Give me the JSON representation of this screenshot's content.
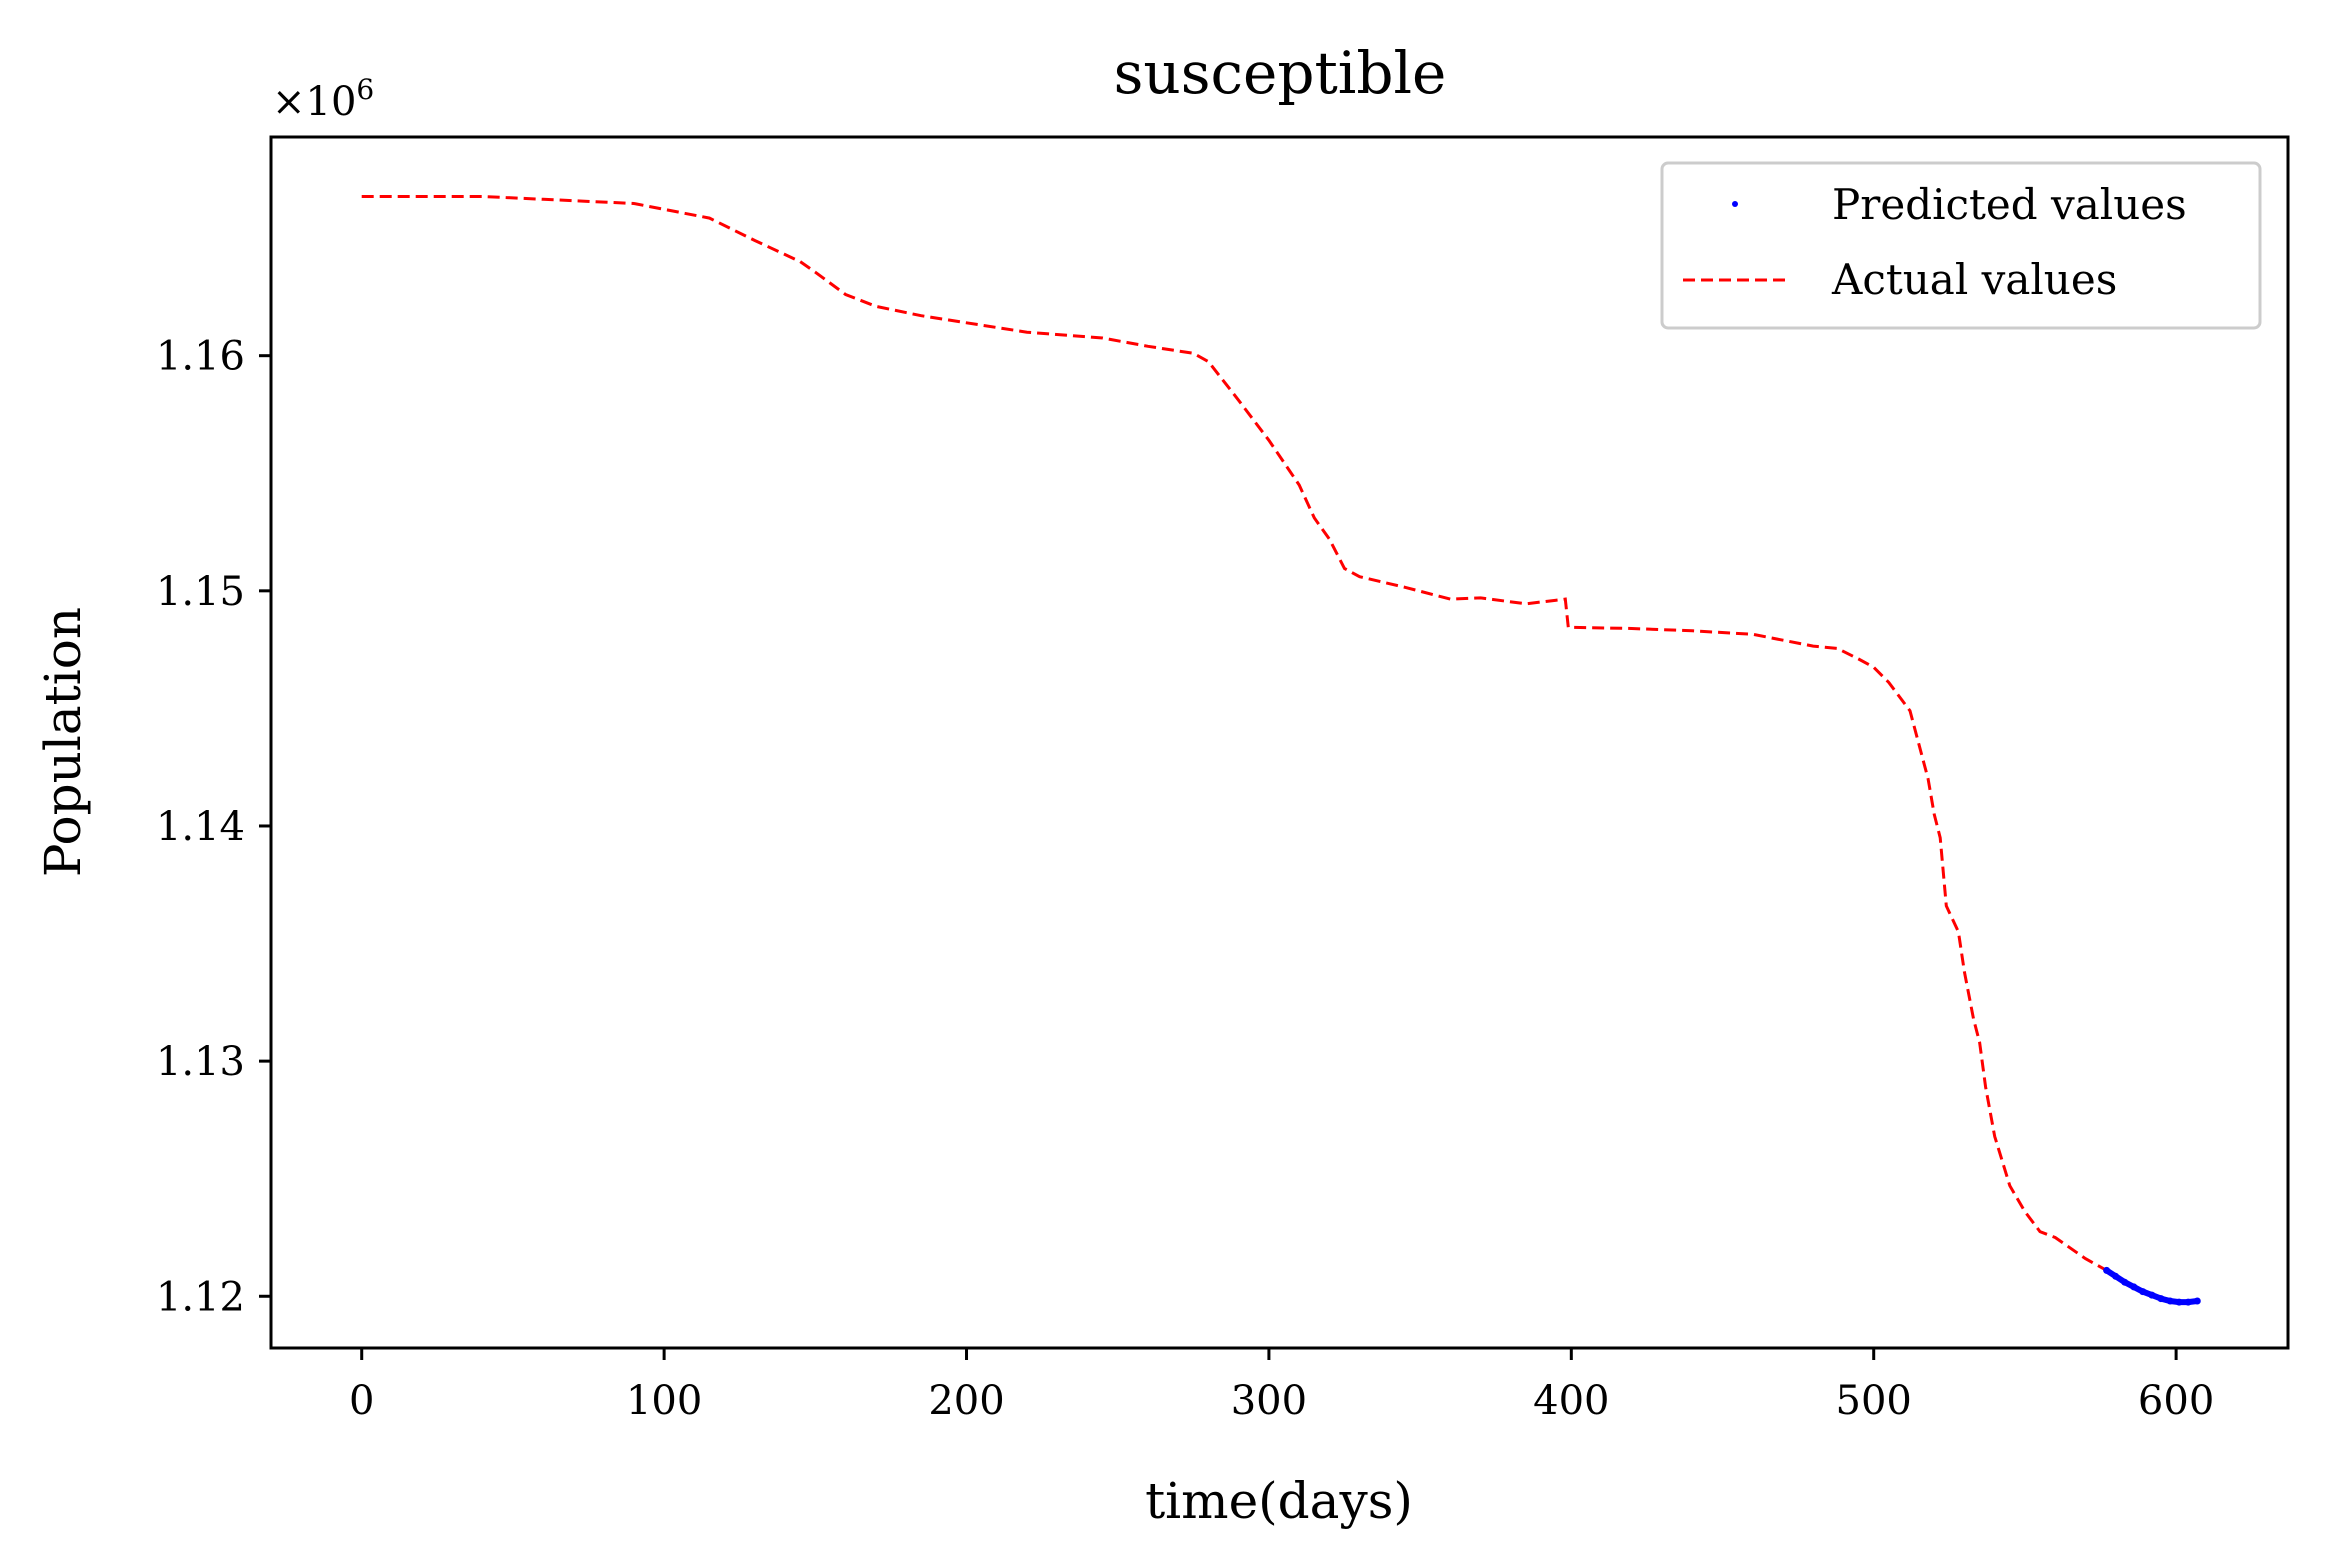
{
  "chart_data": {
    "type": "line",
    "title": "susceptible",
    "xlabel": "time(days)",
    "ylabel": "Population",
    "offset_label": "×10",
    "offset_exponent": "6",
    "xlim": [
      -30,
      637
    ],
    "ylim": [
      1.1178,
      1.1693
    ],
    "xticks": [
      0,
      100,
      200,
      300,
      400,
      500,
      600
    ],
    "xtick_labels": [
      "0",
      "100",
      "200",
      "300",
      "400",
      "500",
      "600"
    ],
    "yticks": [
      1.12,
      1.13,
      1.14,
      1.15,
      1.16
    ],
    "ytick_labels": [
      "1.12",
      "1.13",
      "1.14",
      "1.15",
      "1.16"
    ],
    "legend": {
      "position": "upper right",
      "entries": [
        {
          "label": "Predicted values",
          "style": "dots",
          "color": "#0000ff"
        },
        {
          "label": "Actual values",
          "style": "dashed",
          "color": "#ff0000"
        }
      ]
    },
    "series": [
      {
        "name": "Actual values",
        "color": "#ff0000",
        "style": "dashed",
        "x": [
          0,
          20,
          40,
          60,
          90,
          115,
          130,
          145,
          150,
          160,
          170,
          185,
          200,
          220,
          245,
          260,
          275,
          280,
          290,
          300,
          310,
          315,
          320,
          325,
          330,
          345,
          360,
          370,
          385,
          395,
          398,
          399,
          400,
          420,
          440,
          460,
          470,
          480,
          488,
          495,
          500,
          505,
          512,
          518,
          520,
          522,
          524,
          528,
          530,
          533,
          535,
          537,
          540,
          545,
          550,
          555,
          560,
          570,
          577
        ],
        "y": [
          1.16677,
          1.16677,
          1.16677,
          1.16665,
          1.16647,
          1.16585,
          1.1649,
          1.164,
          1.16355,
          1.1626,
          1.1621,
          1.1617,
          1.1614,
          1.161,
          1.16075,
          1.1604,
          1.1601,
          1.15975,
          1.1581,
          1.1564,
          1.1545,
          1.1531,
          1.1522,
          1.15095,
          1.1506,
          1.15015,
          1.14965,
          1.1497,
          1.14945,
          1.1496,
          1.14965,
          1.14845,
          1.14845,
          1.1484,
          1.1483,
          1.14815,
          1.1479,
          1.14765,
          1.14755,
          1.1471,
          1.14675,
          1.1461,
          1.1449,
          1.142,
          1.1405,
          1.1395,
          1.1366,
          1.1355,
          1.1338,
          1.1318,
          1.1308,
          1.1289,
          1.1268,
          1.1247,
          1.1236,
          1.12275,
          1.1225,
          1.1216,
          1.1211
        ]
      },
      {
        "name": "Predicted values",
        "color": "#0000ff",
        "style": "dots",
        "x": [
          577,
          580,
          583,
          586,
          589,
          592,
          595,
          598,
          601,
          604,
          607
        ],
        "y": [
          1.1211,
          1.12085,
          1.1206,
          1.1204,
          1.1202,
          1.12005,
          1.1199,
          1.1198,
          1.11975,
          1.11975,
          1.1198
        ]
      }
    ]
  }
}
